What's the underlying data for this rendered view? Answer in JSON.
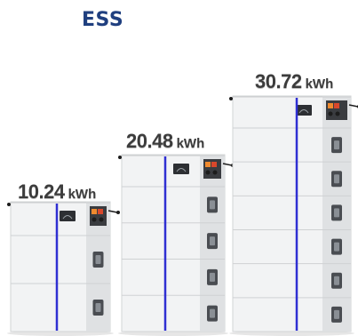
{
  "header": {
    "title": "ESS"
  },
  "colors": {
    "title": "#1f3f7f",
    "label_text": "#3c3c3c",
    "cabinet_face": "#f2f3f4",
    "cabinet_side": "#dfe1e3",
    "accent_stripe": "#2f2fd2",
    "terminal_red": "#d9472b",
    "terminal_orange": "#f08a2e"
  },
  "products": [
    {
      "capacity": "10.24",
      "unit": "kWh",
      "modules": 2
    },
    {
      "capacity": "20.48",
      "unit": "kWh",
      "modules": 4
    },
    {
      "capacity": "30.72",
      "unit": "kWh",
      "modules": 6
    }
  ]
}
